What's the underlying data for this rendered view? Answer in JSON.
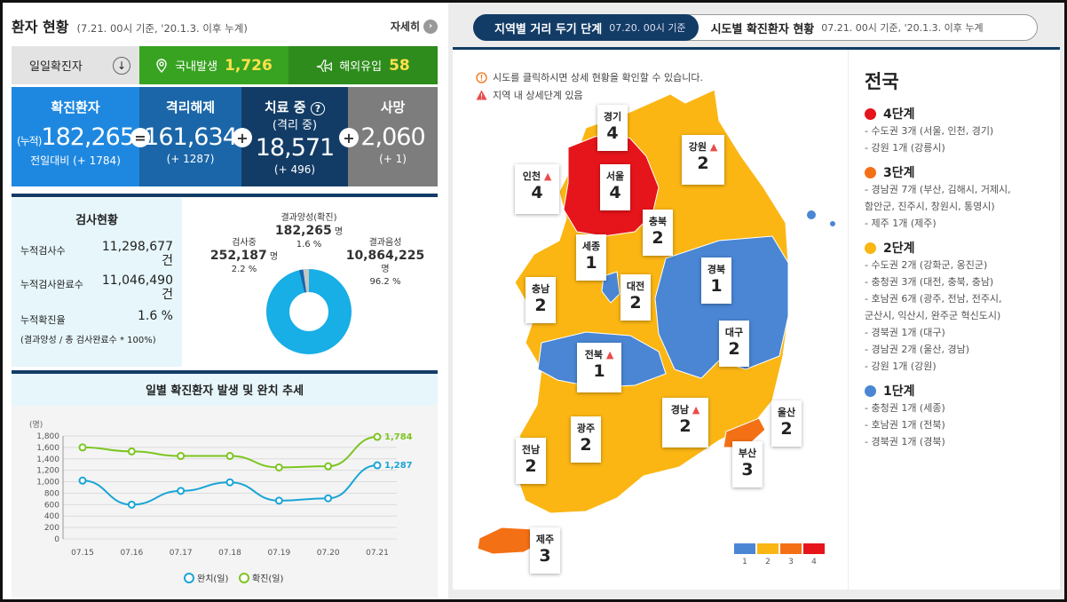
{
  "header": {
    "title": "환자 현황",
    "subtitle": "(7.21. 00시 기준, '20.1.3. 이후 누계)",
    "more_label": "자세히"
  },
  "daily": {
    "label": "일일확진자",
    "domestic_label": "국내발생",
    "domestic_value": "1,726",
    "overseas_label": "해외유입",
    "overseas_value": "58"
  },
  "stats": {
    "confirmed": {
      "title": "확진환자",
      "prefix": "(누적)",
      "value": "182,265",
      "sub": "전일대비 (+ 1784)"
    },
    "released": {
      "title": "격리해제",
      "value": "161,634",
      "sub": "(+ 1287)"
    },
    "treating": {
      "title": "치료 중",
      "title2": "(격리 중)",
      "value": "18,571",
      "sub": "(+ 496)"
    },
    "deaths": {
      "title": "사망",
      "value": "2,060",
      "sub": "(+ 1)"
    }
  },
  "tests": {
    "title": "검사현황",
    "rows": [
      {
        "label": "누적검사수",
        "value": "11,298,677",
        "unit": "건"
      },
      {
        "label": "누적검사완료수",
        "value": "11,046,490",
        "unit": "건"
      },
      {
        "label": "누적확진율",
        "value": "1.6 %",
        "unit": ""
      }
    ],
    "note": "(결과양성 / 총 검사완료수 * 100%)",
    "positive": {
      "label": "결과양성(확진)",
      "value": "182,265",
      "unit": "명",
      "pct": "1.6 %"
    },
    "testing": {
      "label": "검사중",
      "value": "252,187",
      "unit": "명",
      "pct": "2.2 %"
    },
    "negative": {
      "label": "결과음성",
      "value": "10,864,225",
      "unit": "명",
      "pct": "96.2 %"
    }
  },
  "trend": {
    "title": "일별 확진환자 발생 및 완치 추세",
    "unit": "(명)",
    "legend_released": "완치(일)",
    "legend_confirmed": "확진(일)"
  },
  "chart_data": {
    "type": "line",
    "x": [
      "07.15",
      "07.16",
      "07.17",
      "07.18",
      "07.19",
      "07.20",
      "07.21"
    ],
    "series": [
      {
        "name": "완치(일)",
        "values": [
          1020,
          600,
          840,
          990,
          670,
          710,
          1287
        ],
        "color": "#1aa5d6"
      },
      {
        "name": "확진(일)",
        "values": [
          1600,
          1530,
          1450,
          1450,
          1250,
          1270,
          1784
        ],
        "color": "#7cc520"
      }
    ],
    "ylim": [
      0,
      1800
    ],
    "yticks": [
      0,
      200,
      400,
      600,
      800,
      1000,
      1200,
      1400,
      1600,
      1800
    ],
    "ytick_labels": [
      "0",
      "200",
      "400",
      "600",
      "800",
      "1,000",
      "1,200",
      "1,400",
      "1,600",
      "1,800"
    ],
    "last_labels": [
      "1,287",
      "1,784"
    ],
    "grid": true
  },
  "tabs": {
    "tab1_title": "지역별 거리 두기 단계",
    "tab1_sub": "07.20. 00시 기준",
    "tab2_title": "시도별 확진환자 현황",
    "tab2_sub": "07.21. 00시 기준, '20.1.3. 이후 누계"
  },
  "map": {
    "note1": "시도를 클릭하시면 상세 현황을 확인할 수 있습니다.",
    "note2": "지역 내 상세단계 있음",
    "colors": {
      "1": "#4a86d4",
      "2": "#fbb614",
      "3": "#f47015",
      "4": "#e6151b"
    },
    "scale": [
      "1",
      "2",
      "3",
      "4"
    ],
    "regions": [
      {
        "name": "경기",
        "level": "4"
      },
      {
        "name": "강원",
        "level": "2",
        "warn": true
      },
      {
        "name": "인천",
        "level": "4",
        "warn": true
      },
      {
        "name": "서울",
        "level": "4"
      },
      {
        "name": "충북",
        "level": "2"
      },
      {
        "name": "세종",
        "level": "1"
      },
      {
        "name": "충남",
        "level": "2"
      },
      {
        "name": "대전",
        "level": "2"
      },
      {
        "name": "경북",
        "level": "1"
      },
      {
        "name": "전북",
        "level": "1",
        "warn": true
      },
      {
        "name": "대구",
        "level": "2"
      },
      {
        "name": "광주",
        "level": "2"
      },
      {
        "name": "경남",
        "level": "2",
        "warn": true
      },
      {
        "name": "울산",
        "level": "2"
      },
      {
        "name": "전남",
        "level": "2"
      },
      {
        "name": "부산",
        "level": "3"
      },
      {
        "name": "제주",
        "level": "3"
      }
    ]
  },
  "nation": {
    "title": "전국",
    "levels": [
      {
        "label": "4단계",
        "color": "#e6151b",
        "items": [
          "- 수도권 3개 (서울, 인천, 경기)",
          "- 강원 1개 (강릉시)"
        ]
      },
      {
        "label": "3단계",
        "color": "#f47015",
        "items": [
          "- 경남권 7개 (부산, 김해시, 거제시,",
          "함안군, 진주시, 창원시, 통영시)",
          "- 제주 1개 (제주)"
        ]
      },
      {
        "label": "2단계",
        "color": "#fbb614",
        "items": [
          "- 수도권 2개 (강화군, 옹진군)",
          "- 충청권 3개 (대전, 충북, 충남)",
          "- 호남권 6개 (광주, 전남, 전주시,",
          "군산시, 익산시, 완주군 혁신도시)",
          "- 경북권 1개 (대구)",
          "- 경남권 2개 (울산, 경남)",
          "- 강원 1개 (강원)"
        ]
      },
      {
        "label": "1단계",
        "color": "#4a86d4",
        "items": [
          "- 충청권 1개 (세종)",
          "- 호남권 1개 (전북)",
          "- 경북권 1개 (경북)"
        ]
      }
    ]
  }
}
